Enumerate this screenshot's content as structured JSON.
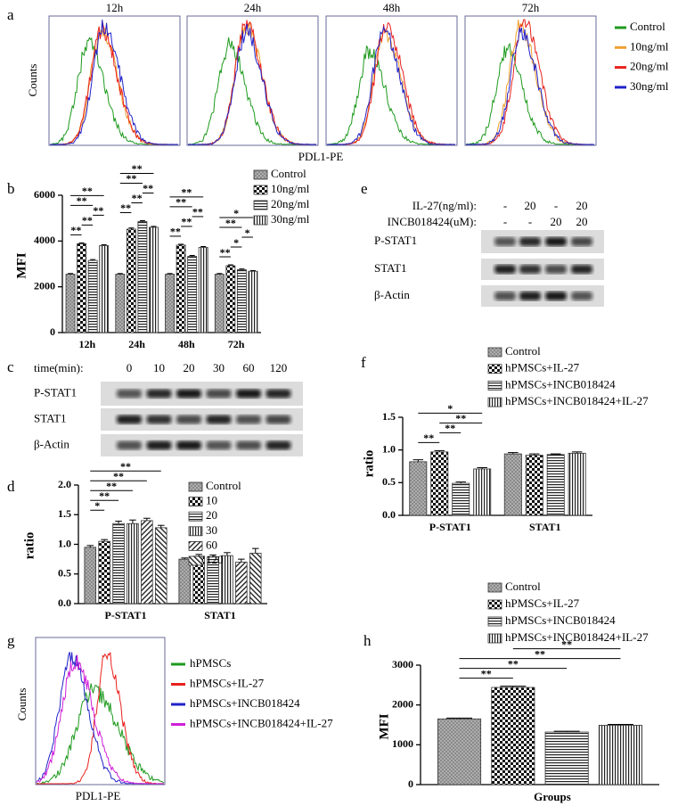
{
  "panel_labels": [
    "a",
    "b",
    "c",
    "d",
    "e",
    "f",
    "g",
    "h"
  ],
  "flow_a": {
    "panels": [
      "12h",
      "24h",
      "48h",
      "72h"
    ],
    "ylabel": "Counts",
    "xlabel": "PDL1-PE",
    "legend": [
      {
        "name": "Control",
        "color": "#1e9a1e"
      },
      {
        "name": "10ng/ml",
        "color": "#f0a030"
      },
      {
        "name": "20ng/ml",
        "color": "#e8221e"
      },
      {
        "name": "30ng/ml",
        "color": "#2222c8"
      }
    ]
  },
  "blot_c": {
    "header_label": "time(min):",
    "lanes": [
      "0",
      "10",
      "20",
      "30",
      "60",
      "120"
    ],
    "rows": [
      "P-STAT1",
      "STAT1",
      "β-Actin"
    ]
  },
  "blot_e": {
    "conditions": [
      {
        "label": "IL-27(ng/ml):",
        "lanes": [
          "-",
          "20",
          "-",
          "20"
        ]
      },
      {
        "label": "INCB018424(uM):",
        "lanes": [
          "-",
          "-",
          "20",
          "20"
        ]
      }
    ],
    "rows": [
      "P-STAT1",
      "STAT1",
      "β-Actin"
    ]
  },
  "flow_g": {
    "ylabel": "Counts",
    "xlabel": "PDL1-PE",
    "legend": [
      {
        "name": "hPMSCs",
        "color": "#1e9a1e"
      },
      {
        "name": "hPMSCs+IL-27",
        "color": "#e8221e"
      },
      {
        "name": "hPMSCs+INCB018424",
        "color": "#2222c8"
      },
      {
        "name": "hPMSCs+INCB018424+IL-27",
        "color": "#d020d8"
      }
    ]
  },
  "chart_data": [
    {
      "type": "bar",
      "ylabel": "MFI",
      "categories": [
        "12h",
        "24h",
        "48h",
        "72h"
      ],
      "series": [
        {
          "name": "Control",
          "pattern": "dots",
          "values": [
            2550,
            2550,
            2550,
            2550
          ],
          "errors": [
            30,
            30,
            30,
            30
          ]
        },
        {
          "name": "10ng/ml",
          "pattern": "checker",
          "values": [
            3880,
            4520,
            3820,
            2920
          ],
          "errors": [
            40,
            50,
            40,
            40
          ]
        },
        {
          "name": "20ng/ml",
          "pattern": "hlines",
          "values": [
            3150,
            4850,
            3330,
            2750
          ],
          "errors": [
            40,
            40,
            40,
            30
          ]
        },
        {
          "name": "30ng/ml",
          "pattern": "vlines",
          "values": [
            3800,
            4600,
            3720,
            2680
          ],
          "errors": [
            40,
            40,
            40,
            30
          ]
        }
      ],
      "ylim": [
        0,
        6000
      ],
      "yticks": [
        0,
        2000,
        4000,
        6000
      ],
      "comparisons": [
        {
          "category": 0,
          "groups": [
            0,
            1
          ],
          "label": "**"
        },
        {
          "category": 0,
          "groups": [
            1,
            2
          ],
          "label": "**"
        },
        {
          "category": 0,
          "groups": [
            2,
            3
          ],
          "label": "**"
        },
        {
          "category": 0,
          "groups": [
            0,
            2
          ],
          "label": "**"
        },
        {
          "category": 0,
          "groups": [
            0,
            3
          ],
          "label": "**"
        },
        {
          "category": 1,
          "groups": [
            0,
            1
          ],
          "label": "**"
        },
        {
          "category": 1,
          "groups": [
            1,
            2
          ],
          "label": "**"
        },
        {
          "category": 1,
          "groups": [
            2,
            3
          ],
          "label": "**"
        },
        {
          "category": 1,
          "groups": [
            0,
            2
          ],
          "label": "**"
        },
        {
          "category": 1,
          "groups": [
            0,
            3
          ],
          "label": "**"
        },
        {
          "category": 2,
          "groups": [
            0,
            1
          ],
          "label": "**"
        },
        {
          "category": 2,
          "groups": [
            1,
            2
          ],
          "label": "**"
        },
        {
          "category": 2,
          "groups": [
            2,
            3
          ],
          "label": "**"
        },
        {
          "category": 2,
          "groups": [
            0,
            2
          ],
          "label": "**"
        },
        {
          "category": 2,
          "groups": [
            0,
            3
          ],
          "label": "**"
        },
        {
          "category": 3,
          "groups": [
            0,
            1
          ],
          "label": "**"
        },
        {
          "category": 3,
          "groups": [
            1,
            2
          ],
          "label": "*"
        },
        {
          "category": 3,
          "groups": [
            2,
            3
          ],
          "label": "*"
        },
        {
          "category": 3,
          "groups": [
            0,
            2
          ],
          "label": "**"
        },
        {
          "category": 3,
          "groups": [
            0,
            3
          ],
          "label": "*"
        }
      ]
    },
    {
      "type": "bar",
      "ylabel": "ratio",
      "categories": [
        "P-STAT1",
        "STAT1"
      ],
      "series": [
        {
          "name": "Control",
          "pattern": "dots",
          "values": [
            0.95,
            0.75
          ],
          "errors": [
            0.03,
            0.02
          ]
        },
        {
          "name": "10",
          "pattern": "checker",
          "values": [
            1.05,
            0.8
          ],
          "errors": [
            0.03,
            0.03
          ]
        },
        {
          "name": "20",
          "pattern": "hlines",
          "values": [
            1.35,
            0.79
          ],
          "errors": [
            0.04,
            0.03
          ]
        },
        {
          "name": "30",
          "pattern": "vlines",
          "values": [
            1.35,
            0.81
          ],
          "errors": [
            0.06,
            0.05
          ]
        },
        {
          "name": "60",
          "pattern": "diag",
          "values": [
            1.4,
            0.7
          ],
          "errors": [
            0.04,
            0.05
          ]
        },
        {
          "name": "120",
          "pattern": "backdiag",
          "values": [
            1.28,
            0.85
          ],
          "errors": [
            0.04,
            0.08
          ]
        }
      ],
      "ylim": [
        0,
        2
      ],
      "yticks": [
        {
          "value": 0,
          "label": "0.0"
        },
        0.5,
        {
          "value": 1,
          "label": "1.0"
        },
        1.5,
        {
          "value": 2,
          "label": "2.0"
        }
      ],
      "comparisons": [
        {
          "category": 0,
          "groups": [
            0,
            1
          ],
          "label": "*"
        },
        {
          "category": 0,
          "groups": [
            0,
            2
          ],
          "label": "**"
        },
        {
          "category": 0,
          "groups": [
            0,
            3
          ],
          "label": "**"
        },
        {
          "category": 0,
          "groups": [
            0,
            4
          ],
          "label": "**"
        },
        {
          "category": 0,
          "groups": [
            0,
            5
          ],
          "label": "**"
        }
      ]
    },
    {
      "type": "bar",
      "ylabel": "ratio",
      "categories": [
        "P-STAT1",
        "STAT1"
      ],
      "series": [
        {
          "name": "Control",
          "pattern": "dots",
          "values": [
            0.82,
            0.94
          ],
          "errors": [
            0.03,
            0.02
          ]
        },
        {
          "name": "hPMSCs+IL-27",
          "pattern": "checker",
          "values": [
            0.97,
            0.92
          ],
          "errors": [
            0.02,
            0.02
          ]
        },
        {
          "name": "hPMSCs+INCB018424",
          "pattern": "hlines",
          "values": [
            0.49,
            0.93
          ],
          "errors": [
            0.02,
            0.01
          ]
        },
        {
          "name": "hPMSCs+INCB018424+IL-27",
          "pattern": "vlines",
          "values": [
            0.71,
            0.95
          ],
          "errors": [
            0.02,
            0.02
          ]
        }
      ],
      "ylim": [
        0,
        1.5
      ],
      "yticks": [
        {
          "value": 0,
          "label": "0.0"
        },
        0.5,
        {
          "value": 1,
          "label": "1.0"
        },
        1.5
      ],
      "comparisons": [
        {
          "category": 0,
          "groups": [
            0,
            1
          ],
          "label": "**"
        },
        {
          "category": 0,
          "groups": [
            1,
            2
          ],
          "label": "**"
        },
        {
          "category": 0,
          "groups": [
            1,
            3
          ],
          "label": "**"
        },
        {
          "category": 0,
          "groups": [
            0,
            3
          ],
          "label": "*"
        }
      ]
    },
    {
      "type": "bar",
      "ylabel": "MFI",
      "xlabel": "Groups",
      "categories": [
        null
      ],
      "series": [
        {
          "name": "Control",
          "pattern": "dots",
          "values": [
            1650
          ],
          "errors": [
            20
          ]
        },
        {
          "name": "hPMSCs+IL-27",
          "pattern": "checker",
          "values": [
            2440
          ],
          "errors": [
            30
          ]
        },
        {
          "name": "hPMSCs+INCB018424",
          "pattern": "hlines",
          "values": [
            1320
          ],
          "errors": [
            20
          ]
        },
        {
          "name": "hPMSCs+INCB018424+IL-27",
          "pattern": "vlines",
          "values": [
            1490
          ],
          "errors": [
            20
          ]
        }
      ],
      "ylim": [
        0,
        3000
      ],
      "yticks": [
        0,
        1000,
        2000,
        3000
      ],
      "comparisons": [
        {
          "category": 0,
          "groups": [
            0,
            1
          ],
          "label": "**"
        },
        {
          "category": 0,
          "groups": [
            0,
            2
          ],
          "label": "**"
        },
        {
          "category": 0,
          "groups": [
            0,
            3
          ],
          "label": "**"
        },
        {
          "category": 0,
          "groups": [
            1,
            3
          ],
          "label": "**"
        }
      ]
    }
  ]
}
